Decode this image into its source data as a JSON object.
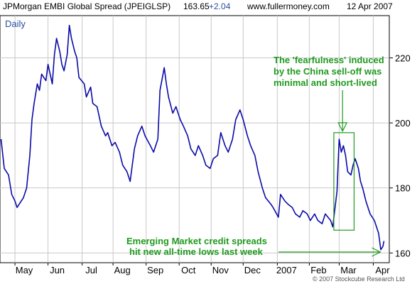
{
  "header": {
    "instrument": "JPMorgan EMBI Global Spread (JPEIGLSP)",
    "last": "163.65",
    "change": "+2.04",
    "site": "www.fullermoney.com",
    "date": "12 Apr 2007"
  },
  "footer": {
    "copyright": "© 2007 Stockcube Research Ltd"
  },
  "colors": {
    "series": "#0a0aa8",
    "annotation": "#1f9a1f",
    "grid": "#c8c8c8",
    "change": "#2a4fa0",
    "frame": "#000000"
  },
  "chart_data": {
    "type": "line",
    "period_label": "Daily",
    "ylim": [
      157,
      233
    ],
    "y_ticks": [
      160,
      180,
      200,
      220
    ],
    "y_tick_labels": [
      "160",
      "180",
      "200",
      "220"
    ],
    "x_ticks": [
      {
        "date": "2006-05-01",
        "label": "May"
      },
      {
        "date": "2006-06-01",
        "label": "Jun"
      },
      {
        "date": "2006-07-03",
        "label": "Jul"
      },
      {
        "date": "2006-08-01",
        "label": "Aug"
      },
      {
        "date": "2006-09-01",
        "label": "Sep"
      },
      {
        "date": "2006-10-02",
        "label": "Oct"
      },
      {
        "date": "2006-11-01",
        "label": "Nov"
      },
      {
        "date": "2006-12-01",
        "label": "Dec"
      },
      {
        "date": "2007-01-02",
        "label": "2007"
      },
      {
        "date": "2007-02-01",
        "label": "Feb"
      },
      {
        "date": "2007-03-01",
        "label": "Mar"
      },
      {
        "date": "2007-04-02",
        "label": "Apr"
      }
    ],
    "x_range": [
      "2006-04-17",
      "2007-04-17"
    ],
    "grid": true,
    "y_axis_side": "right",
    "series": [
      {
        "values": [
          [
            "2006-04-18",
            195
          ],
          [
            "2006-04-21",
            186
          ],
          [
            "2006-04-25",
            184
          ],
          [
            "2006-04-28",
            178
          ],
          [
            "2006-05-01",
            176
          ],
          [
            "2006-05-03",
            174
          ],
          [
            "2006-05-05",
            175
          ],
          [
            "2006-05-09",
            177
          ],
          [
            "2006-05-12",
            180
          ],
          [
            "2006-05-15",
            190
          ],
          [
            "2006-05-17",
            201
          ],
          [
            "2006-05-19",
            206
          ],
          [
            "2006-05-22",
            212
          ],
          [
            "2006-05-24",
            210
          ],
          [
            "2006-05-26",
            215
          ],
          [
            "2006-05-30",
            213
          ],
          [
            "2006-06-01",
            218
          ],
          [
            "2006-06-05",
            212
          ],
          [
            "2006-06-07",
            221
          ],
          [
            "2006-06-09",
            226
          ],
          [
            "2006-06-12",
            222
          ],
          [
            "2006-06-14",
            218
          ],
          [
            "2006-06-16",
            216
          ],
          [
            "2006-06-19",
            221
          ],
          [
            "2006-06-21",
            230
          ],
          [
            "2006-06-23",
            226
          ],
          [
            "2006-06-26",
            222
          ],
          [
            "2006-06-28",
            220
          ],
          [
            "2006-06-30",
            214
          ],
          [
            "2006-07-05",
            212
          ],
          [
            "2006-07-07",
            208
          ],
          [
            "2006-07-11",
            211
          ],
          [
            "2006-07-13",
            206
          ],
          [
            "2006-07-17",
            205
          ],
          [
            "2006-07-19",
            202
          ],
          [
            "2006-07-21",
            199
          ],
          [
            "2006-07-25",
            196
          ],
          [
            "2006-07-27",
            197
          ],
          [
            "2006-07-31",
            193
          ],
          [
            "2006-08-03",
            194
          ],
          [
            "2006-08-07",
            191
          ],
          [
            "2006-08-10",
            187
          ],
          [
            "2006-08-14",
            185
          ],
          [
            "2006-08-17",
            182
          ],
          [
            "2006-08-21",
            192
          ],
          [
            "2006-08-24",
            196
          ],
          [
            "2006-08-28",
            199
          ],
          [
            "2006-08-31",
            196
          ],
          [
            "2006-09-05",
            193
          ],
          [
            "2006-09-08",
            191
          ],
          [
            "2006-09-12",
            195
          ],
          [
            "2006-09-14",
            210
          ],
          [
            "2006-09-18",
            217
          ],
          [
            "2006-09-20",
            212
          ],
          [
            "2006-09-22",
            208
          ],
          [
            "2006-09-26",
            203
          ],
          [
            "2006-09-29",
            205
          ],
          [
            "2006-10-03",
            201
          ],
          [
            "2006-10-06",
            199
          ],
          [
            "2006-10-10",
            196
          ],
          [
            "2006-10-13",
            192
          ],
          [
            "2006-10-17",
            190
          ],
          [
            "2006-10-20",
            193
          ],
          [
            "2006-10-24",
            190
          ],
          [
            "2006-10-27",
            187
          ],
          [
            "2006-10-31",
            186
          ],
          [
            "2006-11-03",
            189
          ],
          [
            "2006-11-07",
            190
          ],
          [
            "2006-11-10",
            197
          ],
          [
            "2006-11-14",
            193
          ],
          [
            "2006-11-17",
            191
          ],
          [
            "2006-11-21",
            195
          ],
          [
            "2006-11-24",
            201
          ],
          [
            "2006-11-28",
            204
          ],
          [
            "2006-12-01",
            201
          ],
          [
            "2006-12-05",
            196
          ],
          [
            "2006-12-08",
            193
          ],
          [
            "2006-12-12",
            190
          ],
          [
            "2006-12-15",
            185
          ],
          [
            "2006-12-19",
            180
          ],
          [
            "2006-12-22",
            177
          ],
          [
            "2006-12-27",
            175
          ],
          [
            "2006-12-29",
            174
          ],
          [
            "2007-01-03",
            171
          ],
          [
            "2007-01-05",
            178
          ],
          [
            "2007-01-09",
            176
          ],
          [
            "2007-01-12",
            175
          ],
          [
            "2007-01-16",
            174
          ],
          [
            "2007-01-19",
            172
          ],
          [
            "2007-01-23",
            171
          ],
          [
            "2007-01-26",
            173
          ],
          [
            "2007-01-30",
            172
          ],
          [
            "2007-02-02",
            170
          ],
          [
            "2007-02-06",
            172
          ],
          [
            "2007-02-09",
            170
          ],
          [
            "2007-02-13",
            169
          ],
          [
            "2007-02-16",
            172
          ],
          [
            "2007-02-21",
            170
          ],
          [
            "2007-02-23",
            168
          ],
          [
            "2007-02-27",
            179
          ],
          [
            "2007-03-01",
            195
          ],
          [
            "2007-03-03",
            191
          ],
          [
            "2007-03-05",
            193
          ],
          [
            "2007-03-07",
            190
          ],
          [
            "2007-03-09",
            185
          ],
          [
            "2007-03-12",
            184
          ],
          [
            "2007-03-14",
            187
          ],
          [
            "2007-03-16",
            189
          ],
          [
            "2007-03-19",
            186
          ],
          [
            "2007-03-21",
            182
          ],
          [
            "2007-03-23",
            180
          ],
          [
            "2007-03-26",
            176
          ],
          [
            "2007-03-28",
            174
          ],
          [
            "2007-03-30",
            172
          ],
          [
            "2007-04-03",
            170
          ],
          [
            "2007-04-05",
            168
          ],
          [
            "2007-04-07",
            166
          ],
          [
            "2007-04-09",
            161
          ],
          [
            "2007-04-11",
            162
          ],
          [
            "2007-04-12",
            163.65
          ]
        ]
      }
    ],
    "annotations": [
      {
        "lines": [
          "The 'fearfulness' induced",
          "by the China sell-off was",
          "minimal and short-lived"
        ],
        "box": {
          "x": [
            "2007-02-24",
            "2007-03-15"
          ],
          "y": [
            167,
            197
          ]
        }
      },
      {
        "lines": [
          "Emerging Market credit spreads",
          "hit new all-time lows last week"
        ],
        "arrow_target": {
          "date": "2007-04-12",
          "value": 161
        }
      }
    ]
  }
}
